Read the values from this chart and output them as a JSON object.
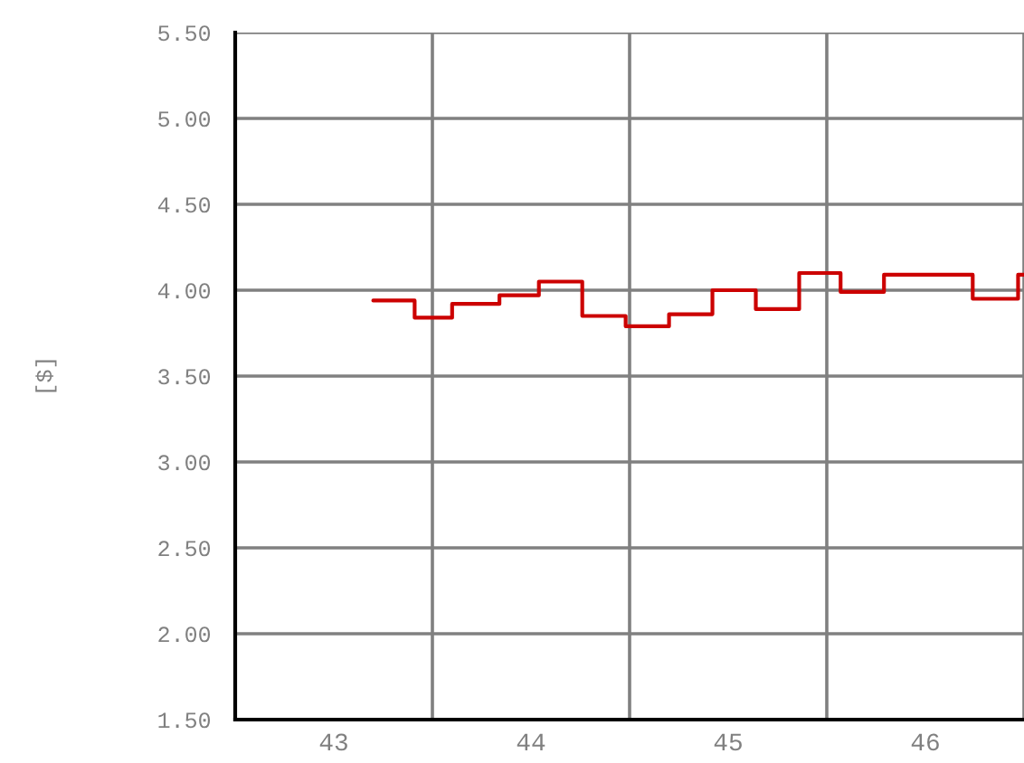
{
  "chart_data": {
    "type": "step",
    "ylabel": "[$]",
    "series": [
      {
        "color": "#cc0000",
        "x": [
          43.7,
          43.91,
          44.1,
          44.34,
          44.54,
          44.76,
          44.98,
          45.2,
          45.42,
          45.64,
          45.86,
          46.07,
          46.29,
          46.74,
          46.97,
          47.0
        ],
        "values": [
          3.94,
          3.84,
          3.92,
          3.97,
          4.05,
          3.85,
          3.79,
          3.86,
          4.0,
          3.89,
          4.1,
          3.99,
          4.09,
          3.95,
          4.09,
          4.09
        ]
      }
    ],
    "xlim": [
      43,
      47
    ],
    "xticks": [
      {
        "value": 43,
        "label": null
      },
      {
        "value": 43.5,
        "label": "43"
      },
      {
        "value": 44,
        "label": null
      },
      {
        "value": 44.5,
        "label": "44"
      },
      {
        "value": 45,
        "label": null
      },
      {
        "value": 45.5,
        "label": "45"
      },
      {
        "value": 46,
        "label": null
      },
      {
        "value": 46.5,
        "label": "46"
      },
      {
        "value": 47,
        "label": null
      }
    ],
    "ylim": [
      1.5,
      5.5
    ],
    "yticks": [
      {
        "value": 1.5,
        "label": "1.50"
      },
      {
        "value": 2.0,
        "label": "2.00"
      },
      {
        "value": 2.5,
        "label": "2.50"
      },
      {
        "value": 3.0,
        "label": "3.00"
      },
      {
        "value": 3.5,
        "label": "3.50"
      },
      {
        "value": 4.0,
        "label": "4.00"
      },
      {
        "value": 4.5,
        "label": "4.50"
      },
      {
        "value": 5.0,
        "label": "5.00"
      },
      {
        "value": 5.5,
        "label": "5.50"
      }
    ],
    "grid": true
  }
}
